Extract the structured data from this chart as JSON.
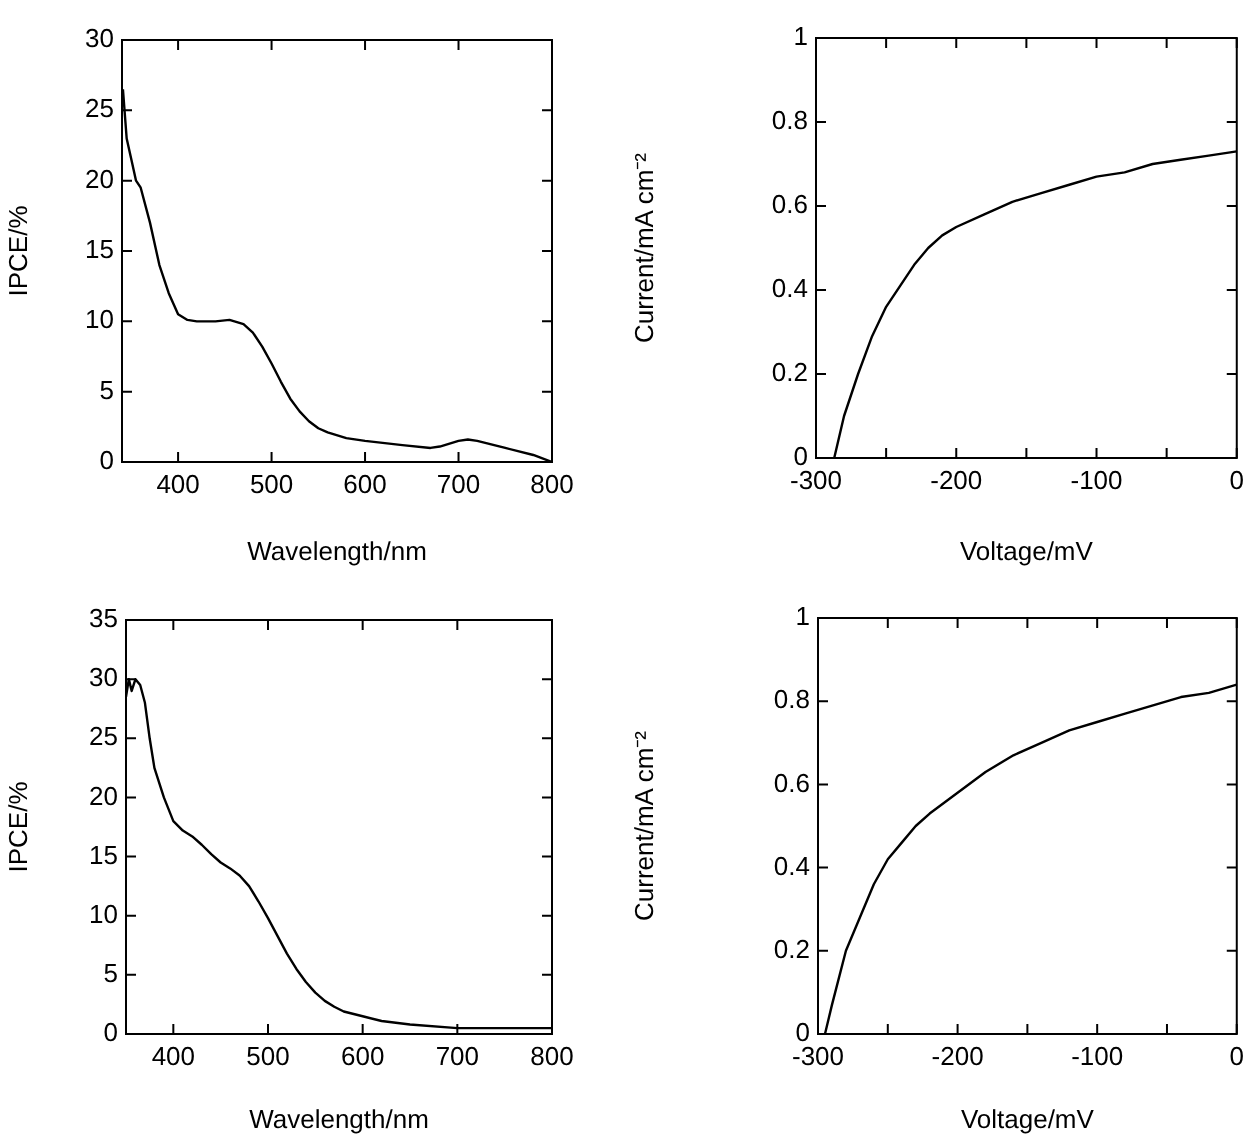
{
  "chart_data": [
    {
      "type": "line",
      "xlabel": "Wavelength/nm",
      "ylabel": "IPCE/%",
      "color": "#000000",
      "xlim": [
        340,
        800
      ],
      "ylim": [
        0,
        30
      ],
      "xticks": [
        400,
        500,
        600,
        700,
        800
      ],
      "yticks": [
        0,
        5,
        10,
        15,
        20,
        25,
        30
      ],
      "x": [
        341,
        345,
        350,
        355,
        360,
        370,
        380,
        390,
        400,
        410,
        420,
        440,
        455,
        470,
        480,
        490,
        500,
        510,
        520,
        530,
        540,
        550,
        560,
        580,
        600,
        640,
        670,
        680,
        700,
        710,
        720,
        750,
        780,
        800
      ],
      "values": [
        26.5,
        23,
        21.5,
        20,
        19.5,
        17,
        14,
        12,
        10.5,
        10.1,
        10,
        10,
        10.1,
        9.8,
        9.2,
        8.2,
        7,
        5.7,
        4.5,
        3.6,
        2.9,
        2.4,
        2.1,
        1.7,
        1.5,
        1.2,
        1,
        1.1,
        1.5,
        1.6,
        1.5,
        1,
        0.5,
        0
      ]
    },
    {
      "type": "line",
      "xlabel": "Voltage/mV",
      "ylabel": "Current/mA cm⁻²",
      "color": "#000000",
      "xlim": [
        -300,
        0
      ],
      "ylim": [
        0,
        1
      ],
      "xticks": [
        -300,
        {
          "value": -250,
          "label": null
        },
        -200,
        {
          "value": -150,
          "label": null
        },
        -100,
        {
          "value": -50,
          "label": null
        },
        0
      ],
      "yticks": [
        0,
        0.2,
        0.4,
        0.6,
        0.8,
        1
      ],
      "x": [
        -287,
        -280,
        -270,
        -260,
        -250,
        -240,
        -230,
        -220,
        -210,
        -200,
        -180,
        -160,
        -140,
        -120,
        -100,
        -80,
        -60,
        -40,
        -20,
        0
      ],
      "values": [
        0,
        0.1,
        0.2,
        0.29,
        0.36,
        0.41,
        0.46,
        0.5,
        0.53,
        0.55,
        0.58,
        0.61,
        0.63,
        0.65,
        0.67,
        0.68,
        0.7,
        0.71,
        0.72,
        0.73
      ]
    },
    {
      "type": "line",
      "xlabel": "Wavelength/nm",
      "ylabel": "IPCE/%",
      "color": "#000000",
      "xlim": [
        350,
        800
      ],
      "ylim": [
        0,
        35
      ],
      "xticks": [
        400,
        500,
        600,
        700,
        800
      ],
      "yticks": [
        0,
        5,
        10,
        15,
        20,
        25,
        30,
        35
      ],
      "x": [
        350,
        353,
        356,
        360,
        365,
        370,
        375,
        380,
        390,
        400,
        410,
        420,
        430,
        440,
        450,
        460,
        470,
        480,
        490,
        500,
        510,
        520,
        530,
        540,
        550,
        560,
        570,
        580,
        600,
        620,
        650,
        700,
        750,
        800
      ],
      "values": [
        28.5,
        30,
        29,
        30,
        29.5,
        28,
        25,
        22.5,
        20,
        18,
        17.2,
        16.7,
        16,
        15.2,
        14.5,
        14,
        13.4,
        12.5,
        11.2,
        9.8,
        8.3,
        6.8,
        5.5,
        4.4,
        3.5,
        2.8,
        2.3,
        1.9,
        1.5,
        1.1,
        0.8,
        0.5,
        0.5,
        0.5
      ]
    },
    {
      "type": "line",
      "xlabel": "Voltage/mV",
      "ylabel": "Current/mA cm⁻²",
      "color": "#000000",
      "xlim": [
        -300,
        0
      ],
      "ylim": [
        0,
        1
      ],
      "xticks": [
        -300,
        {
          "value": -250,
          "label": null
        },
        -200,
        {
          "value": -150,
          "label": null
        },
        -100,
        {
          "value": -50,
          "label": null
        },
        0
      ],
      "yticks": [
        0,
        0.2,
        0.4,
        0.6,
        0.8,
        1
      ],
      "x": [
        -295,
        -290,
        -280,
        -270,
        -260,
        -250,
        -240,
        -230,
        -220,
        -200,
        -180,
        -160,
        -140,
        -120,
        -100,
        -80,
        -60,
        -40,
        -20,
        0
      ],
      "values": [
        0,
        0.07,
        0.2,
        0.28,
        0.36,
        0.42,
        0.46,
        0.5,
        0.53,
        0.58,
        0.63,
        0.67,
        0.7,
        0.73,
        0.75,
        0.77,
        0.79,
        0.81,
        0.82,
        0.84
      ]
    }
  ]
}
